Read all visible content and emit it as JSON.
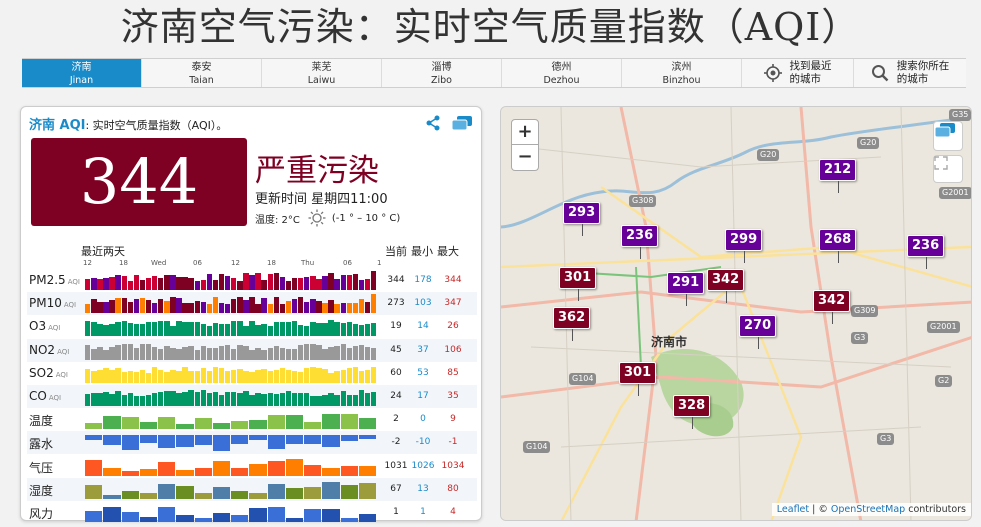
{
  "page_title": "济南空气污染：实时空气质量指数（AQI）",
  "nav": {
    "tabs": [
      {
        "zh": "济南",
        "en": "Jinan",
        "active": true
      },
      {
        "zh": "泰安",
        "en": "Taian"
      },
      {
        "zh": "莱芜",
        "en": "Laiwu"
      },
      {
        "zh": "淄博",
        "en": "Zibo"
      },
      {
        "zh": "德州",
        "en": "Dezhou"
      },
      {
        "zh": "滨州",
        "en": "Binzhou"
      }
    ],
    "nearest": {
      "label1": "找到最近",
      "label2": "的城市",
      "icon": "crosshair-icon"
    },
    "search": {
      "label1": "搜索你所在",
      "label2": "的城市",
      "icon": "search-icon"
    }
  },
  "card": {
    "city": "济南 AQI",
    "subtitle": ": 实时空气质量指数（AQI）。",
    "aqi": "344",
    "level": "严重污染",
    "level_color": "#7e0023",
    "updated": "更新时间 星期四11:00",
    "temp_label": "温度: 2°C",
    "temp_range": "(-1 ° – 10 ° C)",
    "history_label": "最近两天",
    "col_headers": [
      "当前",
      "最小",
      "最大"
    ],
    "x_ticks": [
      "12",
      "18",
      "Wed",
      "06",
      "12",
      "18",
      "Thu",
      "06",
      "1"
    ]
  },
  "pollutants": [
    {
      "name": "PM2.5",
      "aqi_tag": "AQI",
      "cur": "344",
      "min": "178",
      "max": "344"
    },
    {
      "name": "PM10",
      "aqi_tag": "AQI",
      "cur": "273",
      "min": "103",
      "max": "347"
    },
    {
      "name": "O3",
      "aqi_tag": "AQI",
      "cur": "19",
      "min": "14",
      "max": "26"
    },
    {
      "name": "NO2",
      "aqi_tag": "AQI",
      "cur": "45",
      "min": "37",
      "max": "106"
    },
    {
      "name": "SO2",
      "aqi_tag": "AQI",
      "cur": "60",
      "min": "53",
      "max": "85"
    },
    {
      "name": "CO",
      "aqi_tag": "AQI",
      "cur": "24",
      "min": "17",
      "max": "35"
    },
    {
      "name": "温度",
      "aqi_tag": "",
      "cur": "2",
      "min": "0",
      "max": "9"
    },
    {
      "name": "露水",
      "aqi_tag": "",
      "cur": "-2",
      "min": "-10",
      "max": "-1"
    },
    {
      "name": "气压",
      "aqi_tag": "",
      "cur": "1031",
      "min": "1026",
      "max": "1034"
    },
    {
      "name": "湿度",
      "aqi_tag": "",
      "cur": "67",
      "min": "13",
      "max": "80"
    },
    {
      "name": "风力",
      "aqi_tag": "",
      "cur": "1",
      "min": "1",
      "max": "4"
    }
  ],
  "map": {
    "zoom_in": "+",
    "zoom_out": "−",
    "city_label": "济南市",
    "markers": [
      "293",
      "236",
      "212",
      "299",
      "268",
      "236",
      "301",
      "291",
      "342",
      "342",
      "362",
      "270",
      "301",
      "328"
    ],
    "roads": [
      "G35",
      "G20",
      "G20",
      "G2001",
      "G308",
      "G3",
      "G309",
      "G2001",
      "G104",
      "G2",
      "G104",
      "G3"
    ],
    "attribution_leaflet": "Leaflet",
    "attribution_sep": " | © ",
    "attribution_osm": "OpenStreetMap",
    "attribution_tail": " contributors"
  }
}
